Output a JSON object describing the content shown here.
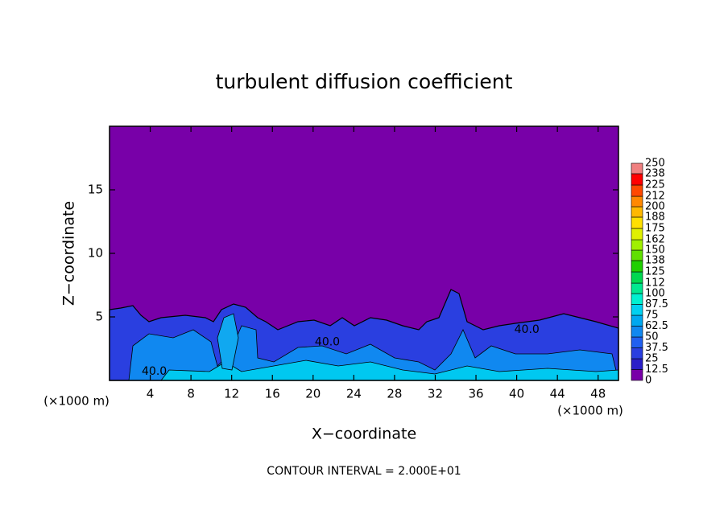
{
  "chart_data": {
    "type": "contour",
    "title": "turbulent diffusion coefficient",
    "xlabel": "X−coordinate",
    "ylabel": "Z−coordinate",
    "x_unit": "(×1000 m)",
    "y_unit": "(×1000 m)",
    "xlim": [
      0,
      50
    ],
    "xticks": [
      4,
      8,
      12,
      16,
      20,
      24,
      28,
      32,
      36,
      40,
      44,
      48
    ],
    "ylim": [
      0,
      20
    ],
    "yticks": [
      5,
      10,
      15
    ],
    "annotation": "CONTOUR INTERVAL = 2.000E+01",
    "contour_labels": [
      {
        "x": 41.0,
        "y": 4.0,
        "value": 40,
        "label": "40.0"
      },
      {
        "x": 4.4,
        "y": 0.7,
        "value": 40,
        "label": "40.0"
      },
      {
        "x": 21.4,
        "y": 3.0,
        "value": 40,
        "label": "40.0"
      }
    ],
    "colorbar": {
      "levels": [
        0,
        12.5,
        25,
        37.5,
        50,
        62.5,
        75,
        87.5,
        100,
        112,
        125,
        138,
        150,
        162,
        175,
        188,
        200,
        212,
        225,
        238,
        250
      ],
      "colors": [
        "#7800a8",
        "#2a1fc8",
        "#2a3fe0",
        "#2060f0",
        "#1088f0",
        "#00a8f0",
        "#00d0f0",
        "#00f0d0",
        "#00e890",
        "#00d850",
        "#20d000",
        "#60e000",
        "#a0f000",
        "#e0f000",
        "#ffe000",
        "#ffb800",
        "#ff8800",
        "#ff4800",
        "#ff0000",
        "#f08080"
      ]
    }
  }
}
